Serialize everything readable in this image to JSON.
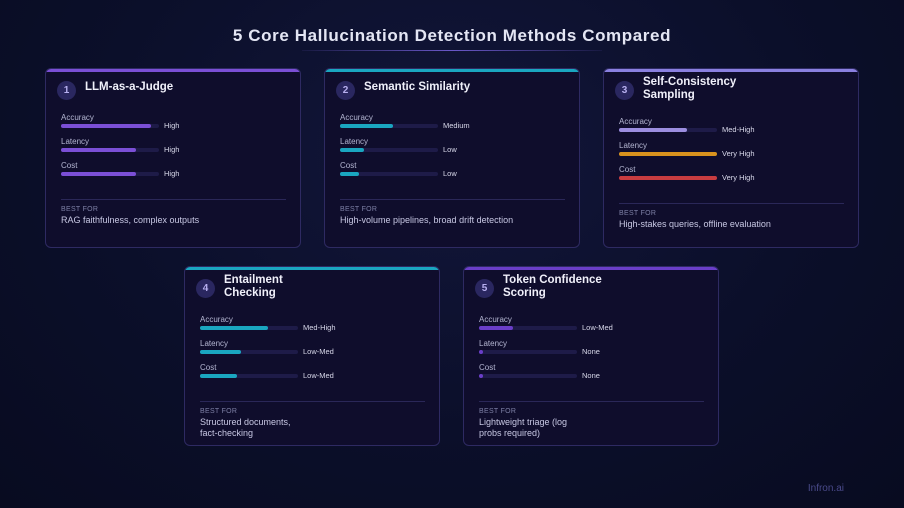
{
  "title": "5 Core Hallucination Detection Methods Compared",
  "best_for_label": "BEST FOR",
  "watermark": "Infron.ai",
  "cards": [
    {
      "number": "1",
      "title": "LLM-as-a-Judge",
      "accent": "#7b4fd6",
      "metrics": [
        {
          "label": "Accuracy",
          "value": "High",
          "level": 0.92,
          "color": "#7b4fd6"
        },
        {
          "label": "Latency",
          "value": "High",
          "level": 0.77,
          "color": "#7b4fd6"
        },
        {
          "label": "Cost",
          "value": "High",
          "level": 0.77,
          "color": "#7b4fd6"
        }
      ],
      "best_for": "RAG faithfulness, complex outputs"
    },
    {
      "number": "2",
      "title": "Semantic Similarity",
      "accent": "#1aa6c0",
      "metrics": [
        {
          "label": "Accuracy",
          "value": "Medium",
          "level": 0.54,
          "color": "#1aa6c0"
        },
        {
          "label": "Latency",
          "value": "Low",
          "level": 0.24,
          "color": "#1aa6c0"
        },
        {
          "label": "Cost",
          "value": "Low",
          "level": 0.19,
          "color": "#1aa6c0"
        }
      ],
      "best_for": "High-volume pipelines, broad drift detection"
    },
    {
      "number": "3",
      "title": "Self-Consistency Sampling",
      "accent": "#8a80e0",
      "metrics": [
        {
          "label": "Accuracy",
          "value": "Med-High",
          "level": 0.69,
          "color": "#9c8ee0"
        },
        {
          "label": "Latency",
          "value": "Very High",
          "level": 1.0,
          "color": "#d8921e"
        },
        {
          "label": "Cost",
          "value": "Very High",
          "level": 1.0,
          "color": "#c83c40"
        }
      ],
      "best_for": "High-stakes queries, offline evaluation"
    },
    {
      "number": "4",
      "title": "Entailment Checking",
      "accent": "#1aa6c0",
      "metrics": [
        {
          "label": "Accuracy",
          "value": "Med-High",
          "level": 0.69,
          "color": "#1aa6c0"
        },
        {
          "label": "Latency",
          "value": "Low-Med",
          "level": 0.42,
          "color": "#1aa6c0"
        },
        {
          "label": "Cost",
          "value": "Low-Med",
          "level": 0.38,
          "color": "#1aa6c0"
        }
      ],
      "best_for": "Structured documents, fact-checking"
    },
    {
      "number": "5",
      "title": "Token Confidence Scoring",
      "accent": "#6a3ec8",
      "metrics": [
        {
          "label": "Accuracy",
          "value": "Low-Med",
          "level": 0.35,
          "color": "#6a3ec8"
        },
        {
          "label": "Latency",
          "value": "None",
          "level": 0.04,
          "color": "#6a3ec8"
        },
        {
          "label": "Cost",
          "value": "None",
          "level": 0.04,
          "color": "#6a3ec8"
        }
      ],
      "best_for": "Lightweight triage (log probs required)"
    }
  ]
}
